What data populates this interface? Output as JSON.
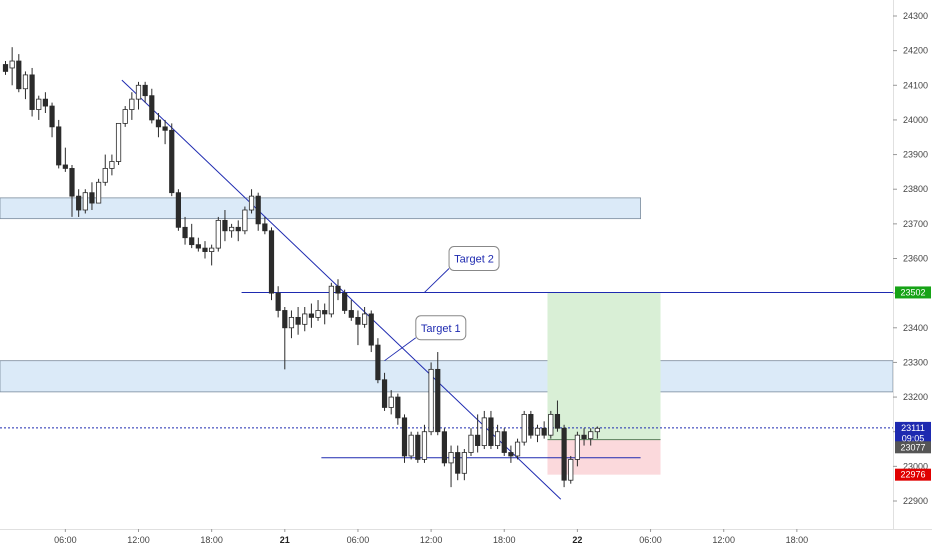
{
  "chart_data": {
    "type": "candlestick",
    "y_axis": {
      "ticks": [
        22900,
        23000,
        23100,
        23200,
        23300,
        23400,
        23500,
        23600,
        23700,
        23800,
        23900,
        24000,
        24100,
        24200,
        24300
      ],
      "range": [
        22840,
        24340
      ],
      "position": "right"
    },
    "x_axis": {
      "labels": [
        {
          "text": "06:00",
          "bar": 9,
          "bold": false
        },
        {
          "text": "12:00",
          "bar": 20,
          "bold": false
        },
        {
          "text": "18:00",
          "bar": 31,
          "bold": false
        },
        {
          "text": "21",
          "bar": 42,
          "bold": true
        },
        {
          "text": "06:00",
          "bar": 53,
          "bold": false
        },
        {
          "text": "12:00",
          "bar": 64,
          "bold": false
        },
        {
          "text": "18:00",
          "bar": 75,
          "bold": false
        },
        {
          "text": "22",
          "bar": 86,
          "bold": true
        },
        {
          "text": "06:00",
          "bar": 97,
          "bold": false
        },
        {
          "text": "12:00",
          "bar": 108,
          "bold": false
        },
        {
          "text": "18:00",
          "bar": 119,
          "bold": false
        }
      ]
    },
    "candles": [
      [
        24160,
        24170,
        24130,
        24140
      ],
      [
        24150,
        24210,
        24100,
        24170
      ],
      [
        24170,
        24190,
        24080,
        24090
      ],
      [
        24090,
        24140,
        24060,
        24130
      ],
      [
        24130,
        24150,
        24010,
        24030
      ],
      [
        24030,
        24070,
        24000,
        24060
      ],
      [
        24060,
        24080,
        24020,
        24040
      ],
      [
        24040,
        24050,
        23950,
        23980
      ],
      [
        23980,
        24000,
        23860,
        23870
      ],
      [
        23870,
        23920,
        23850,
        23860
      ],
      [
        23860,
        23870,
        23720,
        23780
      ],
      [
        23780,
        23800,
        23720,
        23740
      ],
      [
        23740,
        23800,
        23730,
        23790
      ],
      [
        23790,
        23820,
        23740,
        23760
      ],
      [
        23760,
        23830,
        23760,
        23820
      ],
      [
        23820,
        23900,
        23810,
        23860
      ],
      [
        23860,
        23900,
        23840,
        23880
      ],
      [
        23880,
        23990,
        23870,
        23990
      ],
      [
        23990,
        24040,
        23980,
        24030
      ],
      [
        24030,
        24080,
        24000,
        24060
      ],
      [
        24060,
        24110,
        24030,
        24100
      ],
      [
        24100,
        24110,
        24050,
        24070
      ],
      [
        24070,
        24090,
        23990,
        24000
      ],
      [
        24000,
        24020,
        23950,
        23980
      ],
      [
        23980,
        24000,
        23930,
        23970
      ],
      [
        23970,
        23990,
        23780,
        23790
      ],
      [
        23790,
        23800,
        23680,
        23690
      ],
      [
        23690,
        23720,
        23640,
        23660
      ],
      [
        23660,
        23700,
        23630,
        23640
      ],
      [
        23640,
        23660,
        23620,
        23630
      ],
      [
        23630,
        23650,
        23600,
        23620
      ],
      [
        23620,
        23640,
        23580,
        23630
      ],
      [
        23630,
        23720,
        23620,
        23710
      ],
      [
        23710,
        23740,
        23650,
        23680
      ],
      [
        23680,
        23700,
        23660,
        23690
      ],
      [
        23690,
        23710,
        23650,
        23680
      ],
      [
        23680,
        23750,
        23670,
        23740
      ],
      [
        23740,
        23800,
        23730,
        23780
      ],
      [
        23780,
        23790,
        23680,
        23700
      ],
      [
        23700,
        23720,
        23670,
        23680
      ],
      [
        23680,
        23690,
        23480,
        23500
      ],
      [
        23500,
        23520,
        23430,
        23450
      ],
      [
        23450,
        23460,
        23280,
        23400
      ],
      [
        23400,
        23450,
        23370,
        23430
      ],
      [
        23430,
        23460,
        23380,
        23410
      ],
      [
        23410,
        23460,
        23390,
        23440
      ],
      [
        23440,
        23470,
        23400,
        23430
      ],
      [
        23430,
        23480,
        23420,
        23450
      ],
      [
        23450,
        23470,
        23410,
        23440
      ],
      [
        23440,
        23530,
        23430,
        23520
      ],
      [
        23520,
        23540,
        23480,
        23500
      ],
      [
        23500,
        23510,
        23440,
        23450
      ],
      [
        23450,
        23480,
        23420,
        23430
      ],
      [
        23430,
        23450,
        23350,
        23410
      ],
      [
        23410,
        23460,
        23400,
        23440
      ],
      [
        23440,
        23450,
        23330,
        23350
      ],
      [
        23350,
        23370,
        23240,
        23250
      ],
      [
        23250,
        23270,
        23160,
        23170
      ],
      [
        23170,
        23220,
        23150,
        23200
      ],
      [
        23200,
        23210,
        23120,
        23140
      ],
      [
        23140,
        23150,
        23010,
        23030
      ],
      [
        23030,
        23100,
        23020,
        23090
      ],
      [
        23090,
        23100,
        23010,
        23020
      ],
      [
        23020,
        23120,
        23010,
        23100
      ],
      [
        23100,
        23300,
        23090,
        23280
      ],
      [
        23280,
        23330,
        23090,
        23100
      ],
      [
        23100,
        23110,
        23000,
        23010
      ],
      [
        23010,
        23060,
        22940,
        23040
      ],
      [
        23040,
        23060,
        22960,
        22980
      ],
      [
        22980,
        23050,
        22960,
        23040
      ],
      [
        23040,
        23110,
        23030,
        23090
      ],
      [
        23090,
        23150,
        23040,
        23060
      ],
      [
        23060,
        23160,
        23050,
        23140
      ],
      [
        23140,
        23160,
        23050,
        23060
      ],
      [
        23060,
        23120,
        23050,
        23100
      ],
      [
        23100,
        23110,
        23030,
        23040
      ],
      [
        23040,
        23060,
        23010,
        23030
      ],
      [
        23030,
        23080,
        23020,
        23070
      ],
      [
        23070,
        23160,
        23060,
        23150
      ],
      [
        23150,
        23160,
        23080,
        23090
      ],
      [
        23090,
        23120,
        23070,
        23110
      ],
      [
        23110,
        23130,
        23080,
        23090
      ],
      [
        23090,
        23160,
        23080,
        23150
      ],
      [
        23150,
        23190,
        23100,
        23110
      ],
      [
        23110,
        23120,
        22940,
        22960
      ],
      [
        22960,
        23030,
        22950,
        23020
      ],
      [
        23020,
        23100,
        23000,
        23090
      ],
      [
        23090,
        23110,
        23060,
        23080
      ],
      [
        23080,
        23110,
        23060,
        23100
      ],
      [
        23100,
        23115,
        23080,
        23110
      ]
    ],
    "zones": [
      {
        "name": "upper-supply-zone",
        "from_bar": 0,
        "to_bar": 95.5,
        "low": 23715,
        "high": 23775
      },
      {
        "name": "lower-supply-zone",
        "from_bar": 0,
        "to_bar": 999,
        "low": 23215,
        "high": 23305
      }
    ],
    "lines": [
      {
        "name": "trendline",
        "from": [
          17.5,
          24115
        ],
        "to": [
          83.5,
          22905
        ]
      },
      {
        "name": "target-2-line",
        "from": [
          35.5,
          23502
        ],
        "to": [
          999,
          23502
        ]
      },
      {
        "name": "support-line",
        "from": [
          47.5,
          23025
        ],
        "to": [
          95.5,
          23025
        ]
      },
      {
        "name": "current-price-line",
        "from": [
          0,
          23111
        ],
        "to": [
          999,
          23111
        ]
      }
    ],
    "position": {
      "from_bar": 81.5,
      "to_bar": 98.5,
      "entry": 23077,
      "target": 23502,
      "stop": 22976
    },
    "annotations": [
      {
        "text": "Target 2",
        "anchor_bar": 63,
        "anchor_price": 23502,
        "box_bar": 67,
        "box_price": 23600
      },
      {
        "text": "Target 1",
        "anchor_bar": 57,
        "anchor_price": 23305,
        "box_bar": 62,
        "box_price": 23400
      }
    ],
    "price_labels": [
      {
        "value": "23502",
        "price": 23502,
        "color": "#16a316"
      },
      {
        "value": "23111",
        "price": 23111,
        "color": "#1e2ab0"
      },
      {
        "value": "09:05",
        "price": 23080,
        "color": "#1e2ab0"
      },
      {
        "value": "23077",
        "price": 23055,
        "color": "#555555"
      },
      {
        "value": "22976",
        "price": 22976,
        "color": "#e00000"
      }
    ],
    "colors": {
      "candle_up": "#ffffff",
      "candle_down": "#2b2b2b",
      "zone_fill": "#dbeaf8",
      "zone_stroke": "#7a8a9c",
      "trend": "#1e2ab0",
      "profit_fill": "#d9efd6",
      "loss_fill": "#fbd9dc",
      "entry_line": "#5b7f5b"
    }
  }
}
